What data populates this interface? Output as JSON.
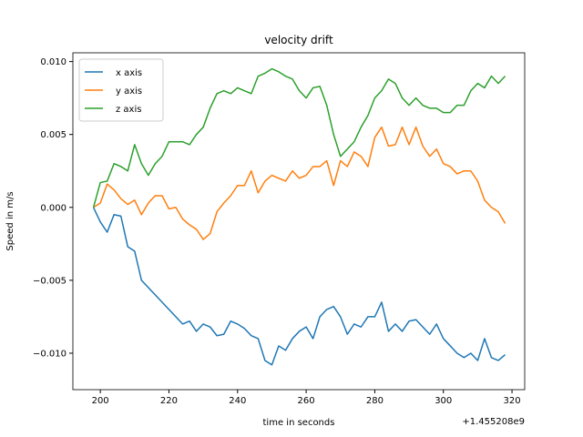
{
  "chart_data": {
    "type": "line",
    "title": "velocity drift",
    "xlabel": "time in seconds",
    "ylabel": "Speed in m/s",
    "x_offset_label": "+1.455208e9",
    "x": [
      198,
      200,
      202,
      204,
      206,
      208,
      210,
      212,
      214,
      216,
      218,
      220,
      222,
      224,
      226,
      228,
      230,
      232,
      234,
      236,
      238,
      240,
      242,
      244,
      246,
      248,
      250,
      252,
      254,
      256,
      258,
      260,
      262,
      264,
      266,
      268,
      270,
      272,
      274,
      276,
      278,
      280,
      282,
      284,
      286,
      288,
      290,
      292,
      294,
      296,
      298,
      300,
      302,
      304,
      306,
      308,
      310,
      312,
      314,
      316,
      318
    ],
    "series": [
      {
        "name": "x axis",
        "color": "#1f77b4",
        "values": [
          0,
          -0.001,
          -0.0017,
          -0.0005,
          -0.0006,
          -0.0027,
          -0.003,
          -0.005,
          -0.0055,
          -0.006,
          -0.0065,
          -0.007,
          -0.0075,
          -0.008,
          -0.0078,
          -0.0085,
          -0.008,
          -0.0082,
          -0.0088,
          -0.0087,
          -0.0078,
          -0.008,
          -0.0083,
          -0.0088,
          -0.009,
          -0.0105,
          -0.0108,
          -0.0095,
          -0.0098,
          -0.009,
          -0.0085,
          -0.0082,
          -0.009,
          -0.0075,
          -0.007,
          -0.0068,
          -0.0075,
          -0.0087,
          -0.008,
          -0.0082,
          -0.0075,
          -0.0075,
          -0.0065,
          -0.0085,
          -0.008,
          -0.0085,
          -0.0078,
          -0.0077,
          -0.0082,
          -0.0087,
          -0.008,
          -0.009,
          -0.0095,
          -0.01,
          -0.0103,
          -0.01,
          -0.0105,
          -0.009,
          -0.0103,
          -0.0105,
          -0.0101
        ]
      },
      {
        "name": "y axis",
        "color": "#ff7f0e",
        "values": [
          0,
          0.0003,
          0.0016,
          0.0012,
          0.0006,
          0.0002,
          0.0005,
          -0.0005,
          0.0003,
          0.0008,
          0.0008,
          -0.0001,
          0,
          -0.0008,
          -0.0012,
          -0.0015,
          -0.0022,
          -0.0018,
          -0.0003,
          0.0003,
          0.0008,
          0.0015,
          0.0015,
          0.0025,
          0.001,
          0.0018,
          0.0022,
          0.002,
          0.0018,
          0.0025,
          0.002,
          0.0022,
          0.0028,
          0.0028,
          0.0032,
          0.0015,
          0.0032,
          0.0028,
          0.0038,
          0.0035,
          0.0028,
          0.0048,
          0.0055,
          0.0042,
          0.0043,
          0.0055,
          0.0043,
          0.0055,
          0.0042,
          0.0035,
          0.004,
          0.003,
          0.0028,
          0.0023,
          0.0025,
          0.0025,
          0.0018,
          0.0005,
          0,
          -0.0003,
          -0.0011
        ]
      },
      {
        "name": "z axis",
        "color": "#2ca02c",
        "values": [
          0,
          0.0017,
          0.0018,
          0.003,
          0.0028,
          0.0025,
          0.0043,
          0.003,
          0.0022,
          0.003,
          0.0035,
          0.0045,
          0.0045,
          0.0045,
          0.0043,
          0.005,
          0.0055,
          0.0068,
          0.0078,
          0.008,
          0.0078,
          0.0082,
          0.008,
          0.0078,
          0.009,
          0.0092,
          0.0095,
          0.0093,
          0.009,
          0.0088,
          0.008,
          0.0075,
          0.0082,
          0.0083,
          0.007,
          0.005,
          0.0035,
          0.004,
          0.0045,
          0.0055,
          0.0063,
          0.0075,
          0.008,
          0.0088,
          0.0085,
          0.0075,
          0.007,
          0.0075,
          0.007,
          0.0068,
          0.0068,
          0.0065,
          0.0065,
          0.007,
          0.007,
          0.008,
          0.0085,
          0.0082,
          0.009,
          0.0085,
          0.009
        ]
      }
    ],
    "xlim": [
      192,
      323.7
    ],
    "xticks": [
      200,
      220,
      240,
      260,
      280,
      300,
      320
    ],
    "ylim": [
      -0.0125,
      0.0106
    ],
    "yticks": [
      {
        "value": -0.01,
        "label": "−0.010"
      },
      {
        "value": -0.005,
        "label": "−0.005"
      },
      {
        "value": 0,
        "label": "0.000"
      },
      {
        "value": 0.005,
        "label": "0.005"
      },
      {
        "value": 0.01,
        "label": "0.010"
      }
    ],
    "grid": false,
    "legend": "upper left"
  }
}
